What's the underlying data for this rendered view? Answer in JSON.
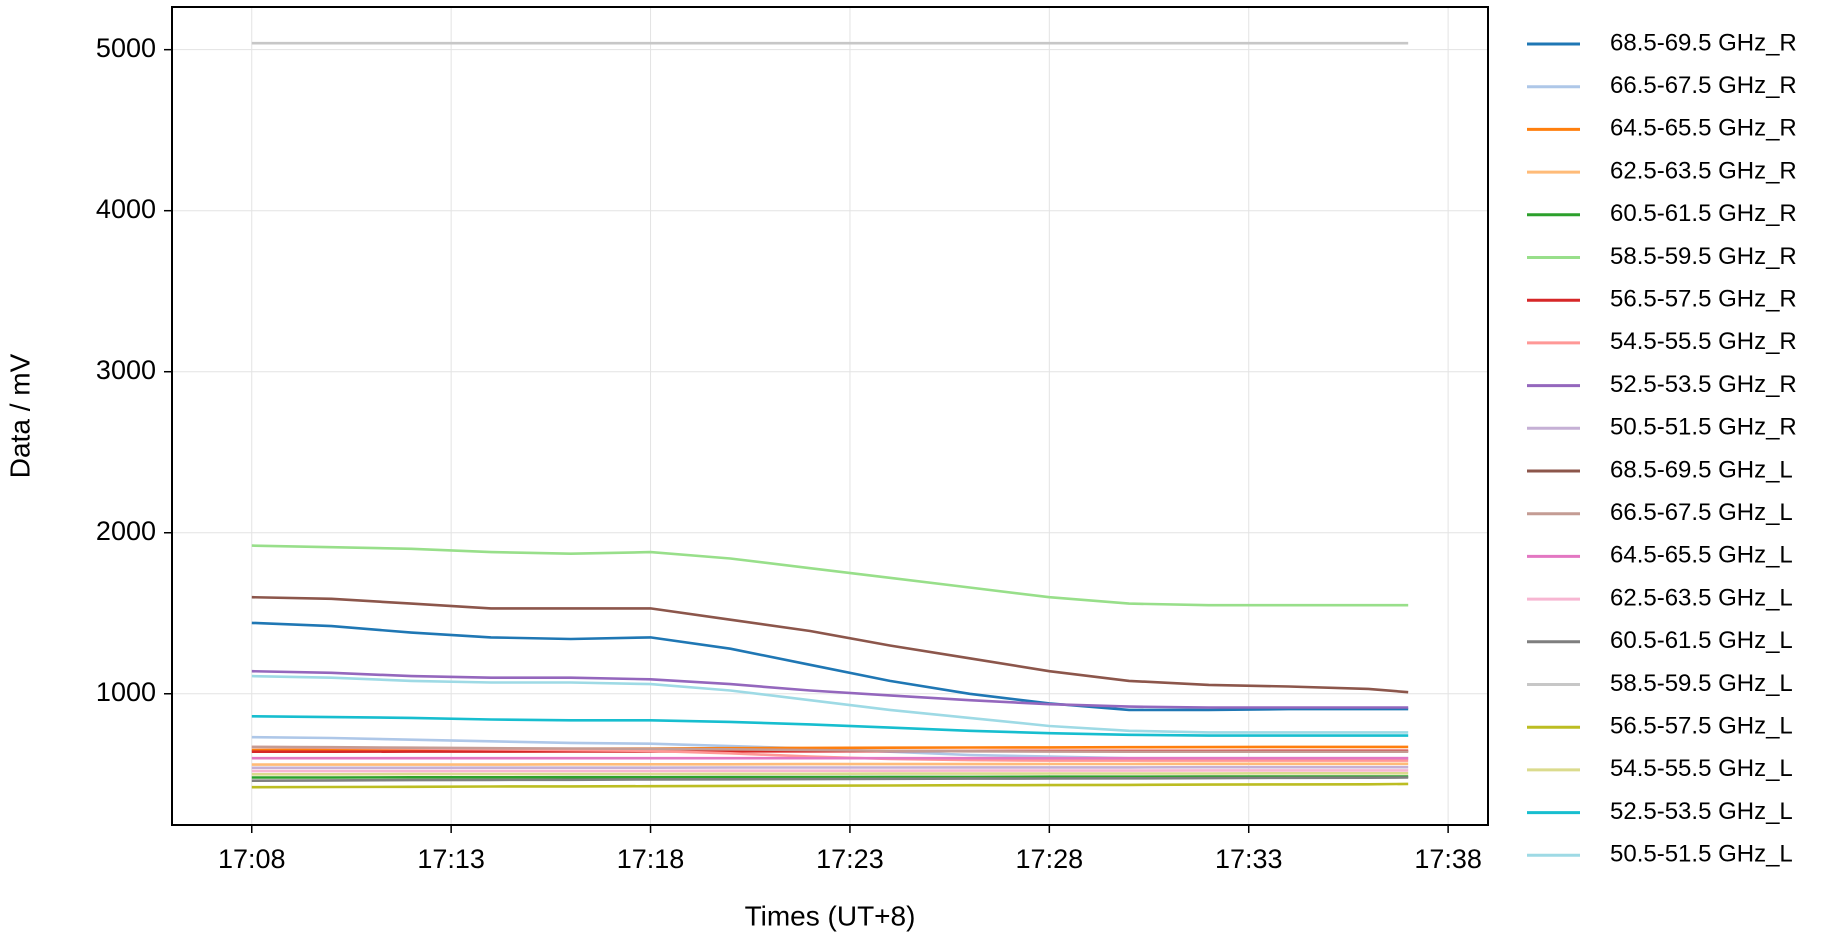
{
  "chart_data": {
    "type": "line",
    "x_label": "Times (UT+8)",
    "y_label": "Data / mV",
    "x": [
      "17:08",
      "17:10",
      "17:12",
      "17:14",
      "17:16",
      "17:18",
      "17:20",
      "17:22",
      "17:24",
      "17:26",
      "17:28",
      "17:30",
      "17:32",
      "17:34",
      "17:36",
      "17:37"
    ],
    "xlim": [
      "17:06",
      "17:39"
    ],
    "xticks": [
      "17:08",
      "17:13",
      "17:18",
      "17:23",
      "17:28",
      "17:33",
      "17:38"
    ],
    "ylim": [
      185,
      5265
    ],
    "yticks": [
      1000,
      2000,
      3000,
      4000,
      5000
    ],
    "grid": true,
    "legend": "outside-right",
    "series": [
      {
        "name": "68.5-69.5 GHz_R",
        "color": "#1f77b4",
        "values": [
          1440,
          1420,
          1380,
          1350,
          1340,
          1350,
          1280,
          1180,
          1080,
          1000,
          940,
          900,
          900,
          905,
          905,
          905
        ]
      },
      {
        "name": "66.5-67.5 GHz_R",
        "color": "#aec7e8",
        "values": [
          730,
          725,
          715,
          705,
          695,
          690,
          675,
          660,
          640,
          620,
          610,
          600,
          600,
          600,
          600,
          600
        ]
      },
      {
        "name": "64.5-65.5 GHz_R",
        "color": "#ff7f0e",
        "values": [
          650,
          652,
          655,
          657,
          658,
          660,
          662,
          664,
          665,
          666,
          667,
          668,
          669,
          670,
          670,
          670
        ]
      },
      {
        "name": "62.5-63.5 GHz_R",
        "color": "#ffbb78",
        "values": [
          560,
          560,
          560,
          560,
          562,
          562,
          562,
          563,
          563,
          563,
          564,
          564,
          565,
          565,
          565,
          565
        ]
      },
      {
        "name": "60.5-61.5 GHz_R",
        "color": "#2ca02c",
        "values": [
          480,
          480,
          481,
          481,
          482,
          482,
          483,
          483,
          484,
          484,
          485,
          485,
          486,
          486,
          486,
          486
        ]
      },
      {
        "name": "58.5-59.5 GHz_R",
        "color": "#98df8a",
        "values": [
          1920,
          1910,
          1900,
          1880,
          1870,
          1880,
          1840,
          1780,
          1720,
          1660,
          1600,
          1560,
          1550,
          1550,
          1550,
          1550
        ]
      },
      {
        "name": "56.5-57.5 GHz_R",
        "color": "#d62728",
        "values": [
          640,
          640,
          641,
          641,
          642,
          642,
          643,
          643,
          644,
          644,
          645,
          645,
          645,
          646,
          646,
          646
        ]
      },
      {
        "name": "54.5-55.5 GHz_R",
        "color": "#ff9896",
        "values": [
          670,
          665,
          660,
          655,
          650,
          645,
          630,
          610,
          595,
          588,
          585,
          585,
          585,
          585,
          585,
          585
        ]
      },
      {
        "name": "52.5-53.5 GHz_R",
        "color": "#9467bd",
        "values": [
          1140,
          1130,
          1110,
          1100,
          1100,
          1090,
          1060,
          1020,
          990,
          960,
          935,
          920,
          915,
          915,
          915,
          915
        ]
      },
      {
        "name": "50.5-51.5 GHz_R",
        "color": "#c5b0d5",
        "values": [
          540,
          540,
          540,
          541,
          541,
          541,
          542,
          542,
          542,
          543,
          543,
          543,
          544,
          544,
          544,
          544
        ]
      },
      {
        "name": "68.5-69.5 GHz_L",
        "color": "#8c564b",
        "values": [
          1600,
          1590,
          1560,
          1530,
          1530,
          1530,
          1460,
          1390,
          1300,
          1220,
          1140,
          1080,
          1055,
          1045,
          1030,
          1010
        ]
      },
      {
        "name": "66.5-67.5 GHz_L",
        "color": "#c49c94",
        "values": [
          670,
          668,
          665,
          662,
          660,
          658,
          655,
          650,
          646,
          643,
          641,
          640,
          640,
          640,
          640,
          640
        ]
      },
      {
        "name": "64.5-65.5 GHz_L",
        "color": "#e377c2",
        "values": [
          600,
          600,
          600,
          600,
          600,
          600,
          600,
          600,
          600,
          600,
          600,
          600,
          600,
          600,
          600,
          600
        ]
      },
      {
        "name": "62.5-63.5 GHz_L",
        "color": "#f7b6d2",
        "values": [
          520,
          520,
          520,
          521,
          521,
          521,
          522,
          522,
          522,
          523,
          523,
          523,
          524,
          524,
          524,
          524
        ]
      },
      {
        "name": "60.5-61.5 GHz_L",
        "color": "#7f7f7f",
        "values": [
          460,
          462,
          464,
          465,
          466,
          468,
          469,
          470,
          472,
          473,
          474,
          475,
          476,
          478,
          479,
          480
        ]
      },
      {
        "name": "58.5-59.5 GHz_L",
        "color": "#c7c7c7",
        "values": [
          5040,
          5040,
          5040,
          5040,
          5040,
          5040,
          5040,
          5040,
          5040,
          5040,
          5040,
          5040,
          5040,
          5040,
          5040,
          5040
        ]
      },
      {
        "name": "56.5-57.5 GHz_L",
        "color": "#bcbd22",
        "values": [
          420,
          421,
          422,
          424,
          425,
          426,
          428,
          429,
          430,
          432,
          433,
          434,
          436,
          437,
          438,
          440
        ]
      },
      {
        "name": "54.5-55.5 GHz_L",
        "color": "#dbdb8d",
        "values": [
          500,
          500,
          501,
          501,
          502,
          502,
          503,
          503,
          504,
          504,
          505,
          505,
          505,
          506,
          506,
          506
        ]
      },
      {
        "name": "52.5-53.5 GHz_L",
        "color": "#17becf",
        "values": [
          860,
          855,
          850,
          840,
          835,
          835,
          825,
          810,
          790,
          770,
          755,
          745,
          740,
          740,
          740,
          740
        ]
      },
      {
        "name": "50.5-51.5 GHz_L",
        "color": "#9edae5",
        "values": [
          1110,
          1100,
          1080,
          1070,
          1070,
          1060,
          1020,
          960,
          900,
          850,
          800,
          770,
          760,
          760,
          760,
          760
        ]
      }
    ]
  }
}
